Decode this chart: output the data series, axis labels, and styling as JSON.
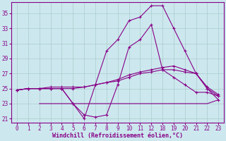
{
  "xlabel": "Windchill (Refroidissement éolien,°C)",
  "background_color": "#cce8ee",
  "grid_color": "#aacccc",
  "line_color": "#880088",
  "ylim": [
    20.5,
    36.5
  ],
  "yticks": [
    21,
    23,
    25,
    27,
    29,
    31,
    33,
    35
  ],
  "xtick_labels": [
    "0",
    "1",
    "2",
    "3",
    "4",
    "5",
    "6",
    "7",
    "8",
    "9",
    "10",
    "11",
    "12",
    "18",
    "19",
    "20",
    "21",
    "22",
    "23"
  ],
  "line1_x": [
    0,
    1,
    2,
    3,
    4,
    5,
    6,
    7,
    8,
    9,
    10,
    11,
    12,
    13,
    14,
    15,
    16,
    17,
    18
  ],
  "line1_y": [
    24.8,
    25.0,
    25.0,
    25.2,
    25.2,
    25.2,
    25.2,
    25.5,
    25.8,
    26.0,
    26.5,
    27.0,
    27.2,
    27.5,
    27.5,
    27.2,
    27.0,
    25.0,
    24.0
  ],
  "line2_x": [
    0,
    1,
    2,
    3,
    4,
    5,
    6,
    7,
    8,
    9,
    10,
    11,
    12,
    13,
    14,
    15,
    16,
    17,
    18
  ],
  "line2_y": [
    24.8,
    25.0,
    25.0,
    25.0,
    25.0,
    25.0,
    25.2,
    25.5,
    25.8,
    26.2,
    26.8,
    27.2,
    27.5,
    27.8,
    28.0,
    27.5,
    27.0,
    25.2,
    24.2
  ],
  "line3_x": [
    0,
    1,
    2,
    3,
    4,
    5,
    6,
    7,
    8,
    9,
    10,
    11,
    12,
    13,
    14,
    15,
    16,
    17,
    18
  ],
  "line3_y": [
    24.8,
    25.0,
    25.0,
    25.0,
    25.0,
    23.0,
    21.5,
    21.2,
    21.5,
    25.5,
    30.5,
    31.5,
    33.5,
    27.5,
    26.5,
    25.5,
    24.5,
    24.5,
    24.0
  ],
  "line4_x": [
    0,
    1,
    2,
    3,
    4,
    5,
    6,
    7,
    8,
    9,
    10,
    11,
    12,
    13,
    14,
    15,
    16,
    17,
    18
  ],
  "line4_y": [
    24.8,
    25.0,
    25.0,
    25.0,
    25.0,
    23.0,
    21.0,
    25.5,
    30.0,
    31.5,
    34.0,
    34.5,
    36.0,
    36.0,
    33.0,
    30.0,
    27.0,
    25.0,
    23.5
  ],
  "line5_x": [
    2,
    3,
    4,
    5,
    6,
    7,
    8,
    9,
    10,
    11,
    12,
    13,
    14,
    15,
    16,
    17,
    18
  ],
  "line5_y": [
    23.0,
    23.0,
    23.0,
    23.0,
    23.0,
    23.0,
    23.0,
    23.0,
    23.0,
    23.0,
    23.0,
    23.0,
    23.0,
    23.0,
    23.0,
    23.0,
    23.5
  ],
  "marker_x3": [
    0,
    1,
    2,
    3,
    4,
    5,
    6,
    7,
    9,
    11,
    12,
    13,
    14,
    15,
    16,
    17,
    18
  ],
  "marker_y3": [
    24.8,
    25.0,
    25.0,
    25.0,
    25.0,
    23.0,
    21.5,
    21.2,
    25.5,
    31.5,
    33.5,
    27.5,
    26.5,
    25.5,
    24.5,
    24.5,
    24.0
  ],
  "marker_x4": [
    0,
    1,
    5,
    6,
    7,
    8,
    9,
    10,
    11,
    12,
    13,
    14,
    15,
    16,
    17,
    18
  ],
  "marker_y4": [
    24.8,
    25.0,
    23.0,
    21.0,
    25.5,
    30.0,
    31.5,
    34.0,
    34.5,
    36.0,
    36.0,
    33.0,
    30.0,
    27.0,
    25.0,
    23.5
  ]
}
